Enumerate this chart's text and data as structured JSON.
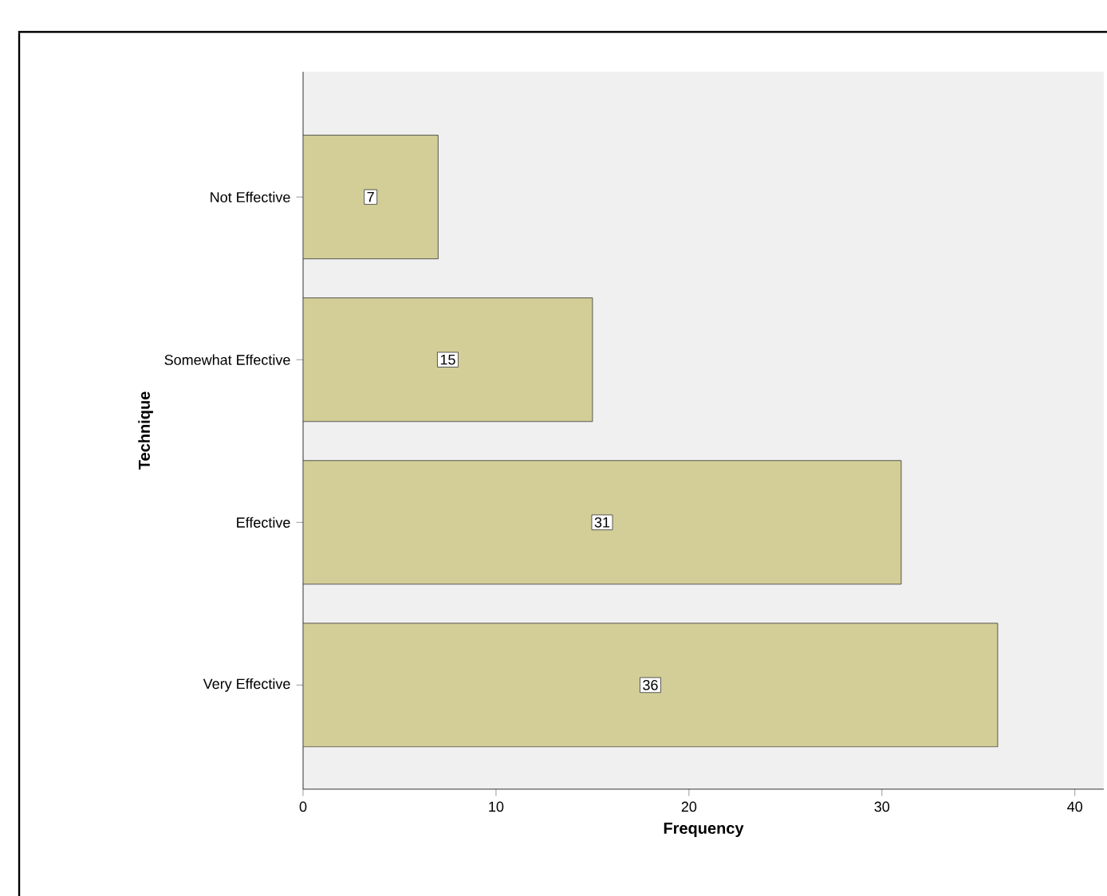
{
  "chart_data": {
    "type": "bar",
    "orientation": "horizontal",
    "xlabel": "Frequency",
    "ylabel": "Technique",
    "categories": [
      "Not Effective",
      "Somewhat Effective",
      "Effective",
      "Very Effective"
    ],
    "values": [
      7,
      15,
      31,
      36
    ],
    "color": "#d3ce97",
    "data_labels": true,
    "xlim": [
      0,
      41.5
    ],
    "xticks": [
      0,
      10,
      20,
      30,
      40
    ],
    "grid": false
  }
}
